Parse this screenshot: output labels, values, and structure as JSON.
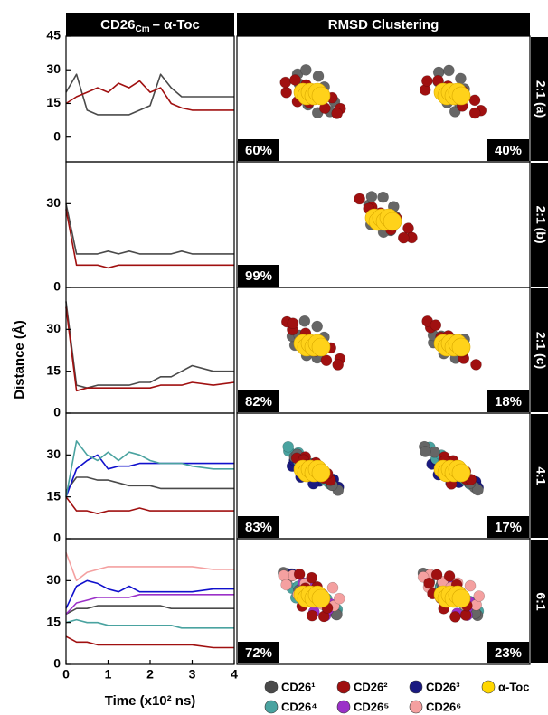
{
  "header": {
    "left": "CD26",
    "left_sub": "Cm",
    "left_rest": "– α-Toc",
    "right": "RMSD Clustering"
  },
  "y_label": "Distance (Å)",
  "x_label": "Time (x10² ns)",
  "chart_data": [
    {
      "type": "line",
      "ylim": [
        -11,
        45
      ],
      "yticks": [
        0,
        15,
        30,
        45
      ],
      "xlim": [
        0,
        4
      ],
      "x": [
        0,
        0.25,
        0.5,
        0.75,
        1,
        1.25,
        1.5,
        1.75,
        2,
        2.25,
        2.5,
        2.75,
        3,
        3.5,
        4
      ],
      "series": [
        {
          "color": "#4a4a4a",
          "values": [
            20,
            28,
            12,
            10,
            10,
            10,
            10,
            12,
            14,
            28,
            22,
            18,
            18,
            18,
            18
          ]
        },
        {
          "color": "#a01010",
          "values": [
            15,
            18,
            20,
            22,
            20,
            24,
            22,
            25,
            20,
            22,
            15,
            13,
            12,
            12,
            12
          ]
        }
      ]
    },
    {
      "type": "line",
      "ylim": [
        0,
        45
      ],
      "yticks": [
        0,
        30
      ],
      "xlim": [
        0,
        4
      ],
      "x": [
        0,
        0.25,
        0.5,
        0.75,
        1,
        1.25,
        1.5,
        1.75,
        2,
        2.25,
        2.5,
        2.75,
        3,
        3.5,
        4
      ],
      "series": [
        {
          "color": "#4a4a4a",
          "values": [
            30,
            12,
            12,
            12,
            13,
            12,
            13,
            12,
            12,
            12,
            12,
            13,
            12,
            12,
            12
          ]
        },
        {
          "color": "#a01010",
          "values": [
            28,
            8,
            8,
            8,
            7,
            8,
            8,
            8,
            8,
            8,
            8,
            8,
            8,
            8,
            8
          ]
        }
      ]
    },
    {
      "type": "line",
      "ylim": [
        0,
        45
      ],
      "yticks": [
        0,
        15,
        30
      ],
      "xlim": [
        0,
        4
      ],
      "x": [
        0,
        0.25,
        0.5,
        0.75,
        1,
        1.25,
        1.5,
        1.75,
        2,
        2.25,
        2.5,
        2.75,
        3,
        3.5,
        4
      ],
      "series": [
        {
          "color": "#4a4a4a",
          "values": [
            40,
            10,
            9,
            10,
            10,
            10,
            10,
            11,
            11,
            13,
            13,
            15,
            17,
            15,
            15
          ]
        },
        {
          "color": "#a01010",
          "values": [
            38,
            8,
            9,
            9,
            9,
            9,
            9,
            9,
            9,
            10,
            10,
            10,
            11,
            10,
            11
          ]
        }
      ]
    },
    {
      "type": "line",
      "ylim": [
        0,
        45
      ],
      "yticks": [
        0,
        15,
        30
      ],
      "xlim": [
        0,
        4
      ],
      "x": [
        0,
        0.25,
        0.5,
        0.75,
        1,
        1.25,
        1.5,
        1.75,
        2,
        2.25,
        2.5,
        2.75,
        3,
        3.5,
        4
      ],
      "series": [
        {
          "color": "#4a4a4a",
          "values": [
            17,
            22,
            22,
            21,
            21,
            20,
            19,
            19,
            19,
            18,
            18,
            18,
            18,
            18,
            18
          ]
        },
        {
          "color": "#a01010",
          "values": [
            15,
            10,
            10,
            9,
            10,
            10,
            10,
            11,
            10,
            10,
            10,
            10,
            10,
            10,
            10
          ]
        },
        {
          "color": "#1010cc",
          "values": [
            15,
            25,
            28,
            30,
            25,
            26,
            26,
            27,
            27,
            27,
            27,
            27,
            27,
            27,
            27
          ]
        },
        {
          "color": "#4aa3a0",
          "values": [
            15,
            35,
            30,
            28,
            31,
            28,
            31,
            30,
            28,
            27,
            27,
            27,
            26,
            25,
            25
          ]
        }
      ]
    },
    {
      "type": "line",
      "ylim": [
        0,
        45
      ],
      "yticks": [
        0,
        15,
        30
      ],
      "xlim": [
        0,
        4
      ],
      "xticks": [
        0,
        1,
        2,
        3,
        4
      ],
      "x": [
        0,
        0.25,
        0.5,
        0.75,
        1,
        1.25,
        1.5,
        1.75,
        2,
        2.25,
        2.5,
        2.75,
        3,
        3.5,
        4
      ],
      "series": [
        {
          "color": "#4a4a4a",
          "values": [
            18,
            20,
            20,
            21,
            21,
            21,
            21,
            21,
            21,
            21,
            20,
            20,
            20,
            20,
            20
          ]
        },
        {
          "color": "#a01010",
          "values": [
            10,
            8,
            8,
            7,
            7,
            7,
            7,
            7,
            7,
            7,
            7,
            7,
            7,
            6,
            6
          ]
        },
        {
          "color": "#1010cc",
          "values": [
            20,
            28,
            30,
            29,
            27,
            26,
            28,
            26,
            26,
            26,
            26,
            26,
            26,
            27,
            27
          ]
        },
        {
          "color": "#4aa3a0",
          "values": [
            15,
            16,
            15,
            15,
            14,
            14,
            14,
            14,
            14,
            14,
            14,
            13,
            13,
            13,
            13
          ]
        },
        {
          "color": "#9b30c8",
          "values": [
            18,
            22,
            23,
            24,
            24,
            24,
            24,
            25,
            25,
            25,
            25,
            25,
            25,
            25,
            25
          ]
        },
        {
          "color": "#f4a0a0",
          "values": [
            40,
            30,
            33,
            34,
            35,
            35,
            35,
            35,
            35,
            35,
            35,
            35,
            35,
            34,
            34
          ]
        }
      ]
    }
  ],
  "clusters": [
    {
      "label": "2:1 (a)",
      "percents": [
        "60%",
        "40%"
      ]
    },
    {
      "label": "2:1 (b)",
      "percents": [
        "99%"
      ]
    },
    {
      "label": "2:1 (c)",
      "percents": [
        "82%",
        "18%"
      ]
    },
    {
      "label": "4:1",
      "percents": [
        "83%",
        "17%"
      ]
    },
    {
      "label": "6:1",
      "percents": [
        "72%",
        "23%"
      ]
    }
  ],
  "legend": [
    {
      "name": "CD26¹",
      "color": "#4a4a4a"
    },
    {
      "name": "CD26²",
      "color": "#a01010"
    },
    {
      "name": "CD26³",
      "color": "#1a1a80"
    },
    {
      "name": "α-Toc",
      "color": "#ffd700"
    },
    {
      "name": "CD26⁴",
      "color": "#4aa3a0"
    },
    {
      "name": "CD26⁵",
      "color": "#9b30c8"
    },
    {
      "name": "CD26⁶",
      "color": "#f4a0a0"
    }
  ]
}
